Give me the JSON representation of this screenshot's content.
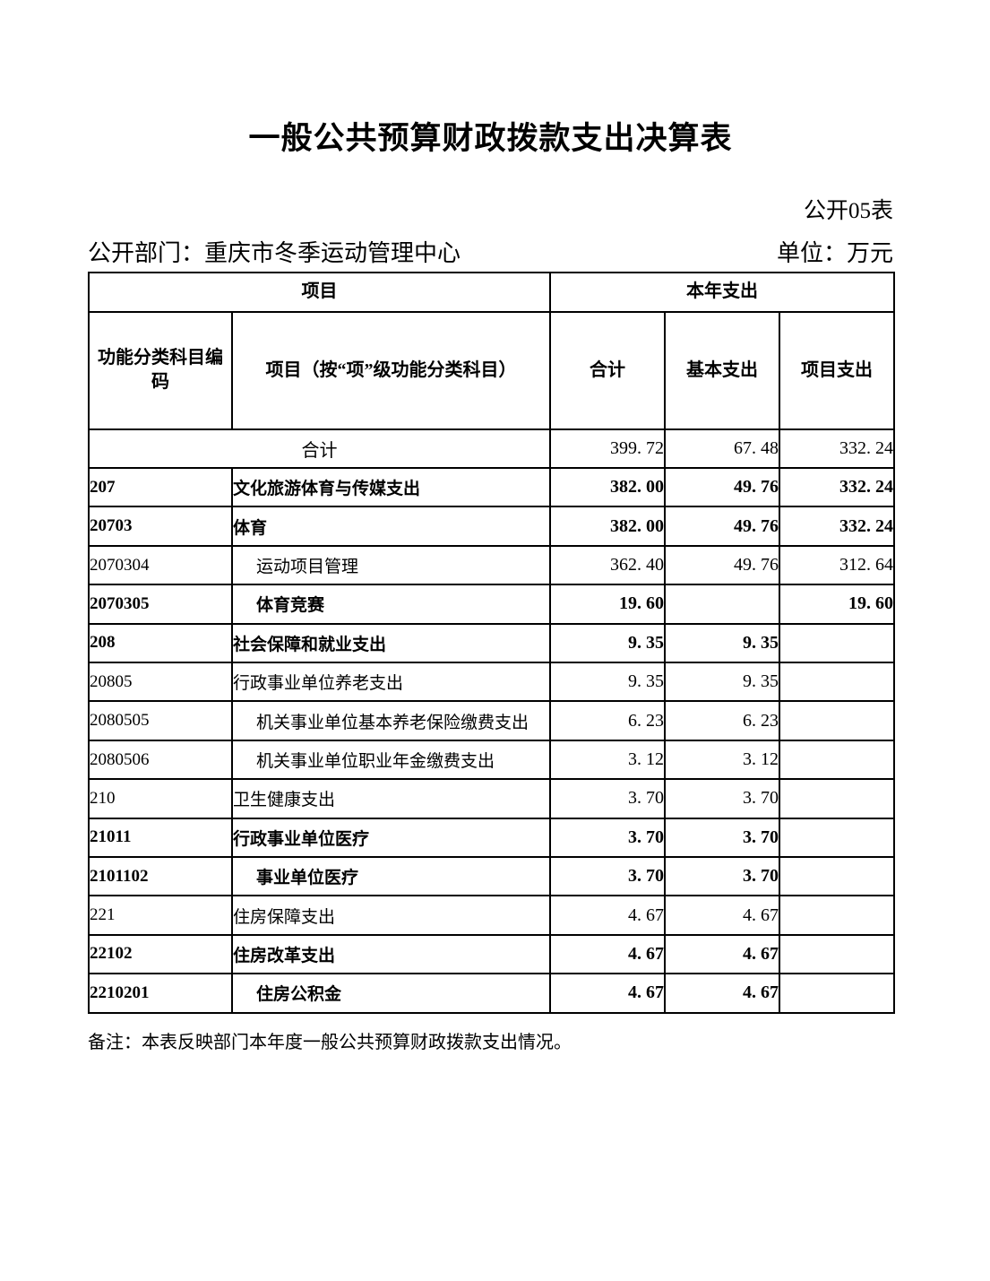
{
  "page": {
    "title": "一般公共预算财政拨款支出决算表",
    "sheet_label": "公开05表",
    "department_label": "公开部门：",
    "department_value": "重庆市冬季运动管理中心",
    "unit_label": "单位：",
    "unit_value": "万元",
    "note": "备注：本表反映部门本年度一般公共预算财政拨款支出情况。"
  },
  "table": {
    "group_headers": {
      "item": "项目",
      "current_year_expenditure": "本年支出"
    },
    "columns": [
      "功能分类科目编码",
      "项目（按“项”级功能分类科目）",
      "合计",
      "基本支出",
      "项目支出"
    ],
    "rows": [
      {
        "code": "",
        "name": "合计",
        "span_code": true,
        "bold": false,
        "indent": false,
        "total": "399.72",
        "basic": "67.48",
        "project": "332.24"
      },
      {
        "code": "207",
        "name": "文化旅游体育与传媒支出",
        "span_code": false,
        "bold": true,
        "indent": false,
        "total": "382.00",
        "basic": "49.76",
        "project": "332.24"
      },
      {
        "code": "20703",
        "name": "体育",
        "span_code": false,
        "bold": true,
        "indent": false,
        "total": "382.00",
        "basic": "49.76",
        "project": "332.24"
      },
      {
        "code": "2070304",
        "name": "运动项目管理",
        "span_code": false,
        "bold": false,
        "indent": true,
        "total": "362.40",
        "basic": "49.76",
        "project": "312.64"
      },
      {
        "code": "2070305",
        "name": "体育竞赛",
        "span_code": false,
        "bold": true,
        "indent": true,
        "total": "19.60",
        "basic": "",
        "project": "19.60"
      },
      {
        "code": "208",
        "name": "社会保障和就业支出",
        "span_code": false,
        "bold": true,
        "indent": false,
        "total": "9.35",
        "basic": "9.35",
        "project": ""
      },
      {
        "code": "20805",
        "name": "行政事业单位养老支出",
        "span_code": false,
        "bold": false,
        "indent": false,
        "total": "9.35",
        "basic": "9.35",
        "project": ""
      },
      {
        "code": "2080505",
        "name": "机关事业单位基本养老保险缴费支出",
        "span_code": false,
        "bold": false,
        "indent": true,
        "total": "6.23",
        "basic": "6.23",
        "project": ""
      },
      {
        "code": "2080506",
        "name": "机关事业单位职业年金缴费支出",
        "span_code": false,
        "bold": false,
        "indent": true,
        "total": "3.12",
        "basic": "3.12",
        "project": ""
      },
      {
        "code": "210",
        "name": "卫生健康支出",
        "span_code": false,
        "bold": false,
        "indent": false,
        "total": "3.70",
        "basic": "3.70",
        "project": ""
      },
      {
        "code": "21011",
        "name": "行政事业单位医疗",
        "span_code": false,
        "bold": true,
        "indent": false,
        "total": "3.70",
        "basic": "3.70",
        "project": ""
      },
      {
        "code": "2101102",
        "name": "事业单位医疗",
        "span_code": false,
        "bold": true,
        "indent": true,
        "total": "3.70",
        "basic": "3.70",
        "project": ""
      },
      {
        "code": "221",
        "name": "住房保障支出",
        "span_code": false,
        "bold": false,
        "indent": false,
        "total": "4.67",
        "basic": "4.67",
        "project": ""
      },
      {
        "code": "22102",
        "name": "住房改革支出",
        "span_code": false,
        "bold": true,
        "indent": false,
        "total": "4.67",
        "basic": "4.67",
        "project": ""
      },
      {
        "code": "2210201",
        "name": "住房公积金",
        "span_code": false,
        "bold": true,
        "indent": true,
        "total": "4.67",
        "basic": "4.67",
        "project": ""
      }
    ]
  }
}
